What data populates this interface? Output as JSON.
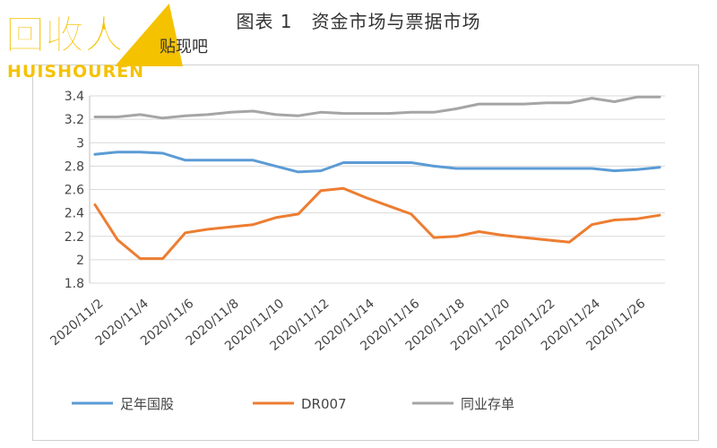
{
  "page": {
    "title": "图表 1　资金市场与票据市场"
  },
  "colors": {
    "series": [
      "#5b9bd5",
      "#ed7d31",
      "#a5a5a5"
    ],
    "grid": "#d9d9d9"
  },
  "chart_data": {
    "type": "line",
    "title": "",
    "xlabel": "",
    "ylabel": "",
    "ylim": [
      1.8,
      3.4
    ],
    "yticks": [
      "3.4",
      "3.2",
      "3",
      "2.8",
      "2.6",
      "2.4",
      "2.2",
      "2",
      "1.8"
    ],
    "x_tick_labels": [
      "2020/11/2",
      "2020/11/4",
      "2020/11/6",
      "2020/11/8",
      "2020/11/10",
      "2020/11/12",
      "2020/11/14",
      "2020/11/16",
      "2020/11/18",
      "2020/11/20",
      "2020/11/22",
      "2020/11/24",
      "2020/11/26"
    ],
    "x_day_range": [
      2,
      27
    ],
    "legend_position": "bottom",
    "grid": true,
    "series": [
      {
        "name": "足年国股",
        "points": [
          [
            2,
            2.9
          ],
          [
            3,
            2.92
          ],
          [
            4,
            2.92
          ],
          [
            5,
            2.91
          ],
          [
            6,
            2.85
          ],
          [
            7,
            2.85
          ],
          [
            8,
            2.85
          ],
          [
            9,
            2.85
          ],
          [
            10,
            2.8
          ],
          [
            11,
            2.75
          ],
          [
            12,
            2.76
          ],
          [
            13,
            2.83
          ],
          [
            14,
            2.83
          ],
          [
            15,
            2.83
          ],
          [
            16,
            2.83
          ],
          [
            17,
            2.8
          ],
          [
            18,
            2.78
          ],
          [
            19,
            2.78
          ],
          [
            20,
            2.78
          ],
          [
            21,
            2.78
          ],
          [
            22,
            2.78
          ],
          [
            23,
            2.78
          ],
          [
            24,
            2.78
          ],
          [
            25,
            2.76
          ],
          [
            26,
            2.77
          ],
          [
            27,
            2.79
          ]
        ]
      },
      {
        "name": "DR007",
        "points": [
          [
            2,
            2.47
          ],
          [
            3,
            2.17
          ],
          [
            4,
            2.01
          ],
          [
            5,
            2.01
          ],
          [
            6,
            2.23
          ],
          [
            7,
            2.26
          ],
          [
            8,
            2.28
          ],
          [
            9,
            2.3
          ],
          [
            10,
            2.36
          ],
          [
            11,
            2.39
          ],
          [
            12,
            2.59
          ],
          [
            13,
            2.61
          ],
          [
            14,
            2.53
          ],
          [
            15,
            2.46
          ],
          [
            16,
            2.39
          ],
          [
            17,
            2.19
          ],
          [
            18,
            2.2
          ],
          [
            19,
            2.24
          ],
          [
            20,
            2.21
          ],
          [
            21,
            2.19
          ],
          [
            22,
            2.17
          ],
          [
            23,
            2.15
          ],
          [
            24,
            2.3
          ],
          [
            25,
            2.34
          ],
          [
            26,
            2.35
          ],
          [
            27,
            2.38
          ]
        ]
      },
      {
        "name": "同业存单",
        "points": [
          [
            2,
            3.22
          ],
          [
            3,
            3.22
          ],
          [
            4,
            3.24
          ],
          [
            5,
            3.21
          ],
          [
            6,
            3.23
          ],
          [
            7,
            3.24
          ],
          [
            8,
            3.26
          ],
          [
            9,
            3.27
          ],
          [
            10,
            3.24
          ],
          [
            11,
            3.23
          ],
          [
            12,
            3.26
          ],
          [
            13,
            3.25
          ],
          [
            14,
            3.25
          ],
          [
            15,
            3.25
          ],
          [
            16,
            3.26
          ],
          [
            17,
            3.26
          ],
          [
            18,
            3.29
          ],
          [
            19,
            3.33
          ],
          [
            20,
            3.33
          ],
          [
            21,
            3.33
          ],
          [
            22,
            3.34
          ],
          [
            23,
            3.34
          ],
          [
            24,
            3.38
          ],
          [
            25,
            3.35
          ],
          [
            26,
            3.39
          ],
          [
            27,
            3.39
          ]
        ]
      }
    ]
  },
  "watermark": {
    "title": "回收人",
    "subtitle": "HUISHOUREN",
    "overlay_text": "贴现吧",
    "colors": {
      "brand": "#f5c200",
      "shadow": "#333333"
    }
  }
}
